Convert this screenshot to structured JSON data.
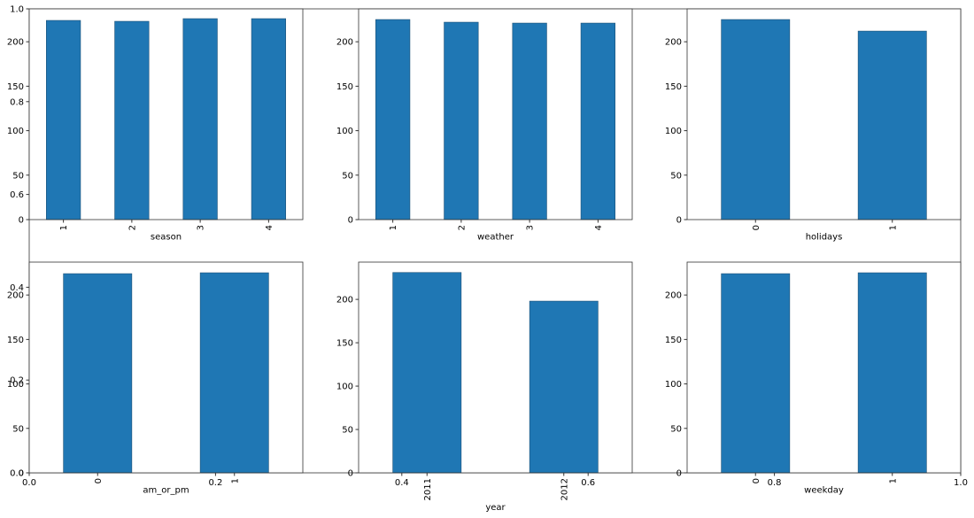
{
  "chart_data": [
    {
      "type": "blank",
      "xlim": [
        0,
        1
      ],
      "xticks": [
        {
          "value": 0,
          "label": "0.0"
        },
        {
          "value": 0.2,
          "label": "0.2"
        },
        {
          "value": 0.4,
          "label": "0.4"
        },
        {
          "value": 0.6,
          "label": "0.6"
        },
        {
          "value": 0.8,
          "label": "0.8"
        },
        {
          "value": 1,
          "label": "1.0"
        }
      ],
      "ylim": [
        0,
        1
      ],
      "yticks": [
        {
          "value": 0,
          "label": "0.0"
        },
        {
          "value": 0.2,
          "label": "0.2"
        },
        {
          "value": 0.4,
          "label": "0.4"
        },
        {
          "value": 0.6,
          "label": "0.6"
        },
        {
          "value": 0.8,
          "label": "0.8"
        },
        {
          "value": 1,
          "label": "1.0"
        }
      ]
    },
    {
      "type": "bar",
      "xlabel": "season",
      "categories": [
        "1",
        "2",
        "3",
        "4"
      ],
      "values": [
        224,
        223,
        226,
        226
      ],
      "color": "#1f77b4",
      "ylim": [
        0,
        237
      ],
      "yticks": [
        0,
        50,
        100,
        150,
        200
      ]
    },
    {
      "type": "bar",
      "xlabel": "weather",
      "categories": [
        "1",
        "2",
        "3",
        "4"
      ],
      "values": [
        225,
        222,
        221,
        221
      ],
      "color": "#1f77b4",
      "ylim": [
        0,
        237
      ],
      "yticks": [
        0,
        50,
        100,
        150,
        200
      ]
    },
    {
      "type": "bar",
      "xlabel": "holidays",
      "categories": [
        "0",
        "1"
      ],
      "values": [
        225,
        212
      ],
      "color": "#1f77b4",
      "ylim": [
        0,
        237
      ],
      "yticks": [
        0,
        50,
        100,
        150,
        200
      ]
    },
    {
      "type": "bar",
      "xlabel": "am_or_pm",
      "categories": [
        "0",
        "1"
      ],
      "values": [
        224,
        225
      ],
      "color": "#1f77b4",
      "ylim": [
        0,
        237
      ],
      "yticks": [
        0,
        50,
        100,
        150,
        200
      ]
    },
    {
      "type": "bar",
      "xlabel": "year",
      "categories": [
        "2011",
        "2012"
      ],
      "values": [
        231,
        198
      ],
      "color": "#1f77b4",
      "ylim": [
        0,
        243
      ],
      "yticks": [
        0,
        50,
        100,
        150,
        200
      ]
    },
    {
      "type": "bar",
      "xlabel": "weekday",
      "categories": [
        "0",
        "1"
      ],
      "values": [
        224,
        225
      ],
      "color": "#1f77b4",
      "ylim": [
        0,
        237
      ],
      "yticks": [
        0,
        50,
        100,
        150,
        200
      ]
    }
  ]
}
